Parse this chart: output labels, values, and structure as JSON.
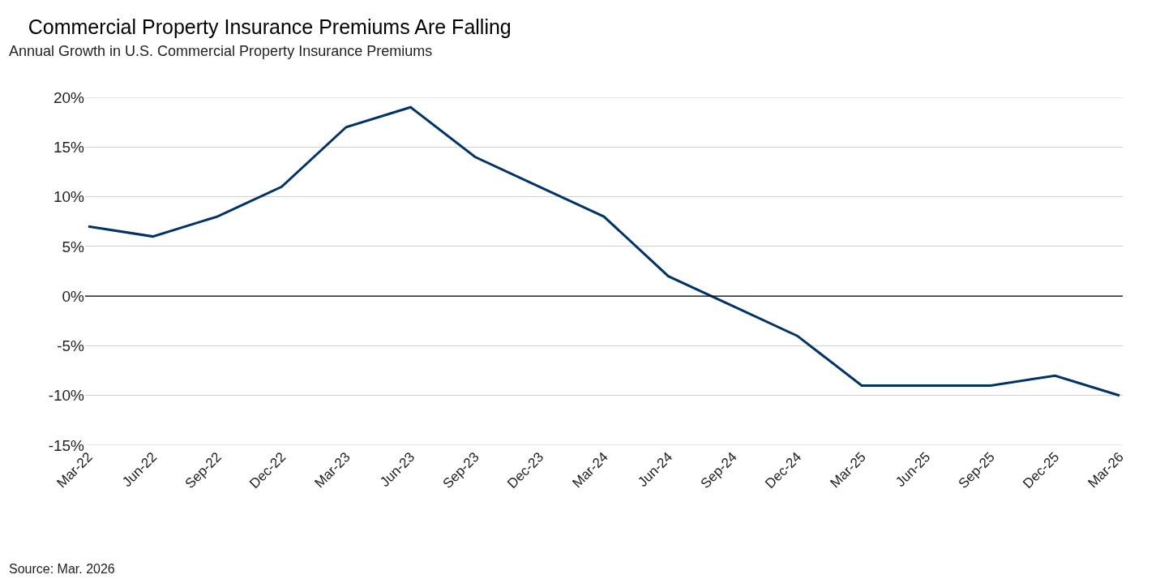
{
  "chart_data": {
    "type": "line",
    "title": "Commercial Property Insurance Premiums Are Falling",
    "subtitle": "Annual Growth in U.S. Commercial Property Insurance Premiums",
    "categories": [
      "Mar-22",
      "Jun-22",
      "Sep-22",
      "Dec-22",
      "Mar-23",
      "Jun-23",
      "Sep-23",
      "Dec-23",
      "Mar-24",
      "Jun-24",
      "Sep-24",
      "Dec-24",
      "Mar-25",
      "Jun-25",
      "Sep-25",
      "Dec-25",
      "Mar-26"
    ],
    "series": [
      {
        "color": "#003366",
        "values": [
          7,
          6,
          8,
          11,
          17,
          19,
          14,
          11,
          8,
          2,
          -1,
          -4,
          -9,
          -9,
          -9,
          -8,
          -10
        ]
      }
    ],
    "ylim": [
      -15,
      20
    ],
    "yticks": [
      {
        "value": -15,
        "label": "-15%"
      },
      {
        "value": -10,
        "label": "-10%"
      },
      {
        "value": -5,
        "label": "-5%"
      },
      {
        "value": 0,
        "label": "0%"
      },
      {
        "value": 5,
        "label": "5%"
      },
      {
        "value": 10,
        "label": "10%"
      },
      {
        "value": 15,
        "label": "15%"
      },
      {
        "value": 20,
        "label": "20%"
      }
    ],
    "grid": "y",
    "legend": false,
    "marker": "none",
    "line_style": "solid",
    "ref_lines": [
      {
        "axis": "y",
        "value": 0,
        "color": "#000000"
      }
    ],
    "annotations": [
      "Source: Mar. 2026"
    ]
  }
}
